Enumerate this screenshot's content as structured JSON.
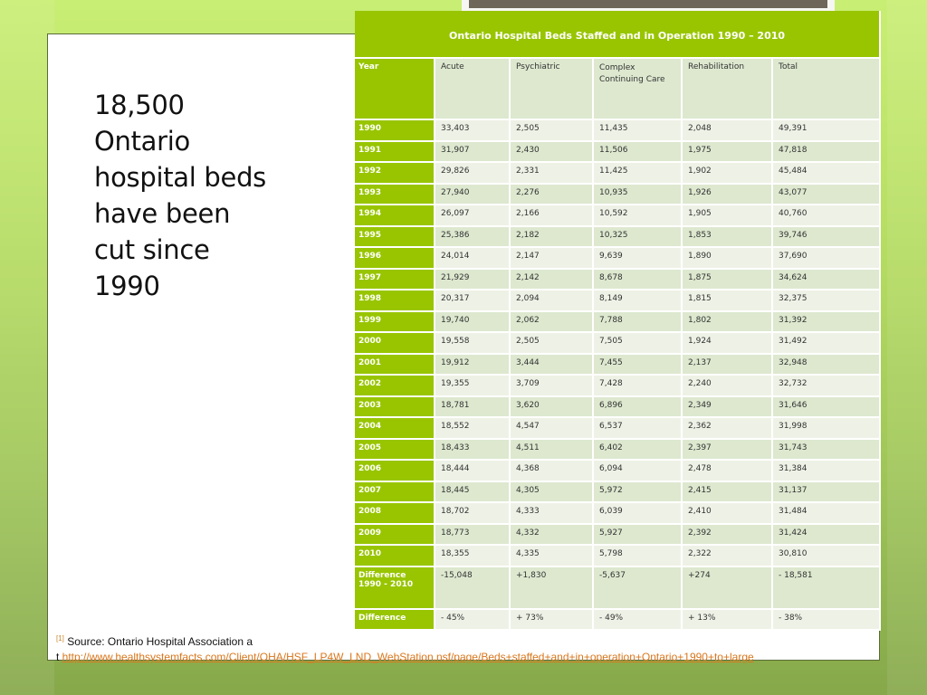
{
  "slide": {
    "headline": "18,500 Ontario hospital beds have been cut since 1990",
    "headline_lines": [
      "18,500",
      "Ontario",
      "hospital beds",
      "have been",
      "cut since",
      "1990"
    ]
  },
  "table": {
    "title": "Ontario Hospital Beds Staffed and in Operation 1990 – 2010",
    "columns": [
      "Year",
      "Acute",
      "Psychiatric",
      "Complex Continuing Care",
      "Rehabilitation",
      "Total"
    ],
    "rows": [
      [
        "1990",
        "33,403",
        "2,505",
        "11,435",
        "2,048",
        "49,391"
      ],
      [
        "1991",
        "31,907",
        "2,430",
        "11,506",
        "1,975",
        "47,818"
      ],
      [
        "1992",
        "29,826",
        "2,331",
        "11,425",
        "1,902",
        "45,484"
      ],
      [
        "1993",
        "27,940",
        "2,276",
        "10,935",
        "1,926",
        "43,077"
      ],
      [
        "1994",
        "26,097",
        "2,166",
        "10,592",
        "1,905",
        "40,760"
      ],
      [
        "1995",
        "25,386",
        "2,182",
        "10,325",
        "1,853",
        "39,746"
      ],
      [
        "1996",
        "24,014",
        "2,147",
        "9,639",
        "1,890",
        "37,690"
      ],
      [
        "1997",
        "21,929",
        "2,142",
        "8,678",
        "1,875",
        "34,624"
      ],
      [
        "1998",
        "20,317",
        "2,094",
        "8,149",
        "1,815",
        "32,375"
      ],
      [
        "1999",
        "19,740",
        "2,062",
        "7,788",
        "1,802",
        "31,392"
      ],
      [
        "2000",
        "19,558",
        "2,505",
        "7,505",
        "1,924",
        "31,492"
      ],
      [
        "2001",
        "19,912",
        "3,444",
        "7,455",
        "2,137",
        "32,948"
      ],
      [
        "2002",
        "19,355",
        "3,709",
        "7,428",
        "2,240",
        "32,732"
      ],
      [
        "2003",
        "18,781",
        "3,620",
        "6,896",
        "2,349",
        "31,646"
      ],
      [
        "2004",
        "18,552",
        "4,547",
        "6,537",
        "2,362",
        "31,998"
      ],
      [
        "2005",
        "18,433",
        "4,511",
        "6,402",
        "2,397",
        "31,743"
      ],
      [
        "2006",
        "18,444",
        "4,368",
        "6,094",
        "2,478",
        "31,384"
      ],
      [
        "2007",
        "18,445",
        "4,305",
        "5,972",
        "2,415",
        "31,137"
      ],
      [
        "2008",
        "18,702",
        "4,333",
        "6,039",
        "2,410",
        "31,484"
      ],
      [
        "2009",
        "18,773",
        "4,332",
        "5,927",
        "2,392",
        "31,424"
      ],
      [
        "2010",
        "18,355",
        "4,335",
        "5,798",
        "2,322",
        "30,810"
      ]
    ],
    "difference_row": [
      "Difference 1990 - 2010",
      "-15,048",
      "+1,830",
      "-5,637",
      "+274",
      "- 18,581"
    ],
    "percent_row": [
      "Difference",
      "- 45%",
      "+ 73%",
      "- 49%",
      "+ 13%",
      "- 38%"
    ]
  },
  "footnote": {
    "ref": "[1]",
    "text": " Source: Ontario Hospital Association a",
    "text2": "t ",
    "link": "http://www.healthsystemfacts.com/Client/OHA/HSF_LP4W_LND_WebStation.nsf/page/Beds+staffed+and+in+operation+Ontario+1990+to+large"
  },
  "colors": {
    "accent_green": "#98c500",
    "row_light": "#eef2e6",
    "row_dark": "#dde8cf",
    "link": "#d9771c"
  }
}
